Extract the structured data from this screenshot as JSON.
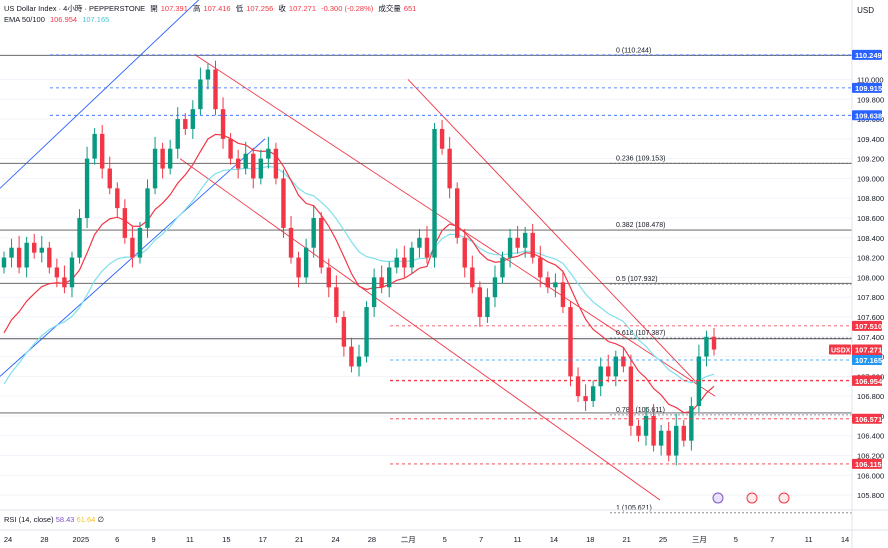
{
  "header": {
    "symbol": "US Dollar Index · 4小時 · PEPPERSTONE",
    "open_label": "開",
    "open": "107.391",
    "high_label": "高",
    "high": "107.416",
    "low_label": "低",
    "low": "107.256",
    "close_label": "收",
    "close": "107.271",
    "change": "-0.300 (-0.28%)",
    "volume_label": "成交量",
    "volume": "651",
    "currency": "USD"
  },
  "ema_legend": {
    "label": "EMA 50/100",
    "ema50": "106.954",
    "ema100": "107.165"
  },
  "rsi_legend": {
    "label": "RSI (14, close)",
    "v1": "58.43",
    "v2": "61.64",
    "v3": "∅"
  },
  "colors": {
    "up": "#089981",
    "down": "#f23645",
    "ema50": "#f23645",
    "ema100": "#7fe0ea",
    "channel_blue": "#2962ff",
    "channel_red": "#f23645",
    "fib": "#787b86"
  },
  "chart_data": {
    "type": "candlestick",
    "x_tick_labels": [
      "24",
      "28",
      "2025",
      "6",
      "9",
      "11",
      "15",
      "17",
      "21",
      "24",
      "28",
      "二月",
      "5",
      "7",
      "11",
      "14",
      "18",
      "21",
      "25",
      "三月",
      "5",
      "7",
      "11",
      "14"
    ],
    "y_tick_labels": [
      "110.000",
      "109.800",
      "109.600",
      "109.400",
      "109.200",
      "109.000",
      "108.800",
      "108.600",
      "108.400",
      "108.200",
      "108.000",
      "107.800",
      "107.600",
      "107.400",
      "107.200",
      "107.000",
      "106.800",
      "106.600",
      "106.400",
      "106.200",
      "106.000",
      "105.800"
    ],
    "ylim": [
      105.7,
      110.5
    ],
    "fib_levels": [
      {
        "label": "0 (110.244)",
        "value": 110.244
      },
      {
        "label": "0.236 (109.153)",
        "value": 109.153
      },
      {
        "label": "0.382 (108.478)",
        "value": 108.478
      },
      {
        "label": "0.5 (107.932)",
        "value": 107.932
      },
      {
        "label": "0.618 (107.387)",
        "value": 107.387
      },
      {
        "label": "0.786 (106.611)",
        "value": 106.611
      },
      {
        "label": "1 (105.621)",
        "value": 105.621
      }
    ],
    "horizontal_lines": [
      107.94,
      107.38,
      106.63
    ],
    "price_markers": [
      {
        "label": "110.249",
        "value": 110.249
      },
      {
        "label": "109.915",
        "value": 109.915
      },
      {
        "label": "109.638",
        "value": 109.638
      },
      {
        "label": "107.510",
        "value": 107.51
      },
      {
        "label": "107.271",
        "value": 107.271,
        "sub": "03:36:04",
        "tag": "USDX"
      },
      {
        "label": "107.165",
        "value": 107.165
      },
      {
        "label": "106.960",
        "value": 106.96
      },
      {
        "label": "106.954",
        "value": 106.954
      },
      {
        "label": "106.571",
        "value": 106.571
      },
      {
        "label": "106.115",
        "value": 106.115
      }
    ],
    "closes": [
      108.2,
      108.3,
      108.1,
      108.35,
      108.25,
      108.3,
      108.1,
      108.0,
      107.9,
      108.2,
      108.6,
      109.2,
      109.45,
      109.1,
      108.9,
      108.7,
      108.4,
      108.2,
      108.5,
      108.9,
      109.3,
      109.1,
      109.3,
      109.6,
      109.5,
      109.7,
      110.0,
      110.1,
      109.7,
      109.4,
      109.2,
      109.1,
      109.25,
      109.0,
      109.2,
      109.3,
      109.0,
      108.5,
      108.2,
      108.0,
      108.3,
      108.6,
      108.1,
      107.9,
      107.6,
      107.3,
      107.1,
      107.2,
      107.7,
      108.0,
      107.9,
      108.1,
      108.2,
      108.1,
      108.3,
      108.4,
      108.2,
      109.5,
      109.3,
      108.9,
      108.4,
      108.1,
      107.9,
      107.6,
      107.8,
      108.0,
      108.2,
      108.4,
      108.3,
      108.45,
      108.2,
      108.0,
      107.9,
      107.95,
      107.7,
      107.0,
      106.8,
      106.75,
      106.9,
      107.1,
      107.0,
      107.2,
      107.1,
      106.5,
      106.4,
      106.6,
      106.3,
      106.45,
      106.2,
      106.5,
      106.35,
      106.7,
      107.2,
      107.4,
      107.271
    ],
    "ema50_start": 107.3,
    "ema100_start": 106.8
  }
}
